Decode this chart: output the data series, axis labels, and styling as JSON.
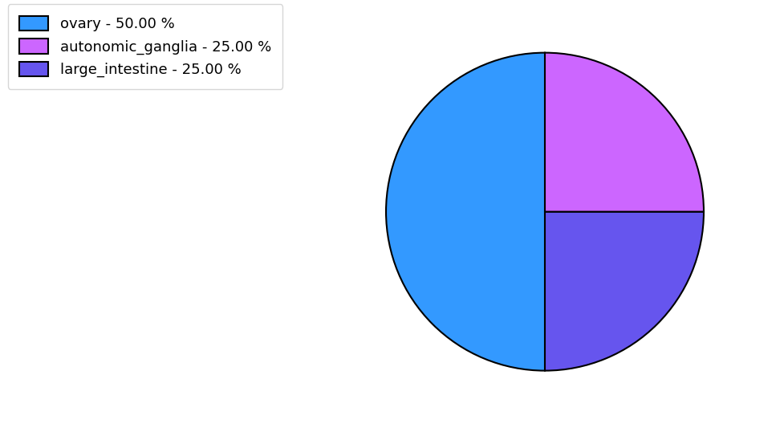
{
  "labels": [
    "ovary",
    "large_intestine",
    "autonomic_ganglia"
  ],
  "sizes": [
    50.0,
    25.0,
    25.0
  ],
  "colors": [
    "#3399FF",
    "#6655EE",
    "#CC66FF"
  ],
  "legend_labels": [
    "ovary - 50.00 %",
    "autonomic_ganglia - 25.00 %",
    "large_intestine - 25.00 %"
  ],
  "legend_colors": [
    "#3399FF",
    "#CC66FF",
    "#6655EE"
  ],
  "startangle": 90,
  "counterclock": true,
  "background_color": "#ffffff",
  "edgecolor": "#000000",
  "linewidth": 1.5,
  "legend_fontsize": 13
}
